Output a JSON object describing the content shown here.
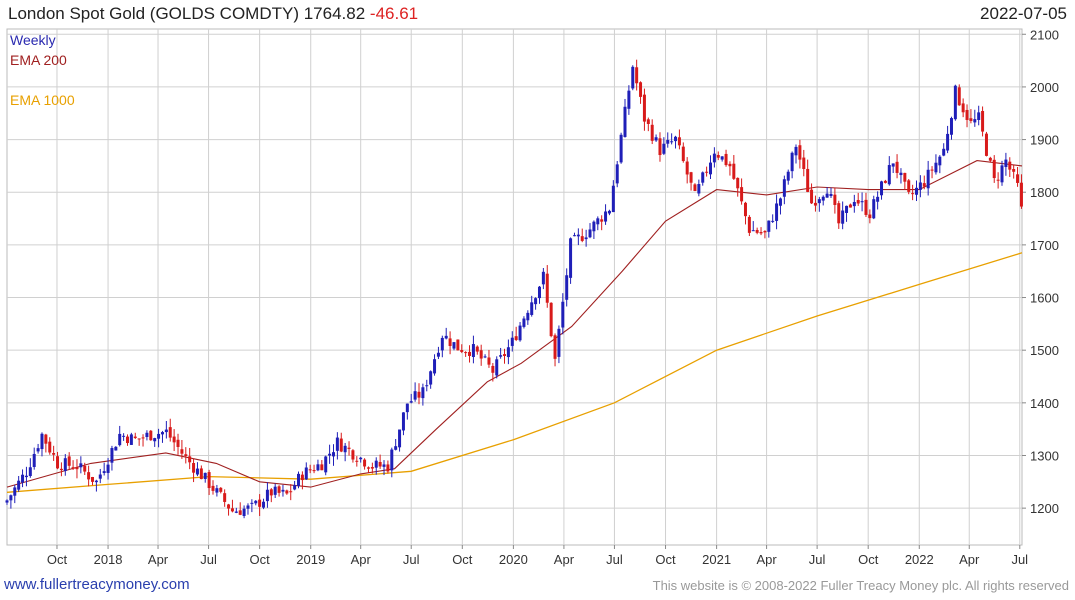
{
  "header": {
    "title": "London Spot Gold (GOLDS COMDTY) 1764.82",
    "change": "-46.61",
    "date": "2022-07-05"
  },
  "footer": {
    "site": "www.fullertreacymoney.com",
    "copyright": "This website is © 2008-2022 Fuller Treacy Money plc. All rights reserved"
  },
  "chart_data": {
    "type": "candlestick",
    "interval_label": "Weekly",
    "legend": [
      {
        "name": "EMA 200",
        "color": "#a02020"
      },
      {
        "name": "EMA 1000",
        "color": "#e8a000"
      }
    ],
    "colors": {
      "up": "#1f1fb8",
      "down": "#d81a1a",
      "grid": "#d0d0d0"
    },
    "y_axis": {
      "min": 1130,
      "max": 2110,
      "ticks": [
        1200,
        1300,
        1400,
        1500,
        1600,
        1700,
        1800,
        1900,
        2000,
        2100
      ],
      "position": "right"
    },
    "x_axis": {
      "range": [
        "2017-07-03",
        "2022-07-05"
      ],
      "ticks": [
        {
          "label": "Oct",
          "date": "2017-10-01"
        },
        {
          "label": "2018",
          "date": "2018-01-01"
        },
        {
          "label": "Apr",
          "date": "2018-04-01"
        },
        {
          "label": "Jul",
          "date": "2018-07-01"
        },
        {
          "label": "Oct",
          "date": "2018-10-01"
        },
        {
          "label": "2019",
          "date": "2019-01-01"
        },
        {
          "label": "Apr",
          "date": "2019-04-01"
        },
        {
          "label": "Jul",
          "date": "2019-07-01"
        },
        {
          "label": "Oct",
          "date": "2019-10-01"
        },
        {
          "label": "2020",
          "date": "2020-01-01"
        },
        {
          "label": "Apr",
          "date": "2020-04-01"
        },
        {
          "label": "Jul",
          "date": "2020-07-01"
        },
        {
          "label": "Oct",
          "date": "2020-10-01"
        },
        {
          "label": "2021",
          "date": "2021-01-01"
        },
        {
          "label": "Apr",
          "date": "2021-04-01"
        },
        {
          "label": "Jul",
          "date": "2021-07-01"
        },
        {
          "label": "Oct",
          "date": "2021-10-01"
        },
        {
          "label": "2022",
          "date": "2022-01-01"
        },
        {
          "label": "Apr",
          "date": "2022-04-01"
        },
        {
          "label": "Jul",
          "date": "2022-07-01"
        }
      ]
    },
    "price_path": [
      {
        "date": "2017-07-03",
        "close": 1215
      },
      {
        "date": "2017-08-07",
        "close": 1270
      },
      {
        "date": "2017-09-04",
        "close": 1340
      },
      {
        "date": "2017-10-02",
        "close": 1285
      },
      {
        "date": "2017-11-06",
        "close": 1280
      },
      {
        "date": "2017-12-11",
        "close": 1250
      },
      {
        "date": "2018-01-22",
        "close": 1340
      },
      {
        "date": "2018-02-19",
        "close": 1330
      },
      {
        "date": "2018-03-19",
        "close": 1340
      },
      {
        "date": "2018-04-16",
        "close": 1345
      },
      {
        "date": "2018-05-21",
        "close": 1295
      },
      {
        "date": "2018-06-25",
        "close": 1255
      },
      {
        "date": "2018-08-13",
        "close": 1195
      },
      {
        "date": "2018-09-17",
        "close": 1200
      },
      {
        "date": "2018-10-22",
        "close": 1230
      },
      {
        "date": "2018-11-19",
        "close": 1225
      },
      {
        "date": "2018-12-17",
        "close": 1265
      },
      {
        "date": "2019-01-21",
        "close": 1285
      },
      {
        "date": "2019-02-18",
        "close": 1325
      },
      {
        "date": "2019-03-18",
        "close": 1305
      },
      {
        "date": "2019-04-22",
        "close": 1280
      },
      {
        "date": "2019-05-20",
        "close": 1280
      },
      {
        "date": "2019-06-24",
        "close": 1400
      },
      {
        "date": "2019-07-22",
        "close": 1420
      },
      {
        "date": "2019-08-26",
        "close": 1530
      },
      {
        "date": "2019-09-23",
        "close": 1505
      },
      {
        "date": "2019-10-21",
        "close": 1500
      },
      {
        "date": "2019-11-25",
        "close": 1460
      },
      {
        "date": "2019-12-30",
        "close": 1515
      },
      {
        "date": "2020-01-27",
        "close": 1580
      },
      {
        "date": "2020-02-24",
        "close": 1640
      },
      {
        "date": "2020-03-16",
        "close": 1480
      },
      {
        "date": "2020-04-13",
        "close": 1700
      },
      {
        "date": "2020-05-18",
        "close": 1730
      },
      {
        "date": "2020-06-22",
        "close": 1770
      },
      {
        "date": "2020-07-20",
        "close": 1950
      },
      {
        "date": "2020-08-03",
        "close": 2040
      },
      {
        "date": "2020-08-24",
        "close": 1940
      },
      {
        "date": "2020-09-21",
        "close": 1880
      },
      {
        "date": "2020-10-19",
        "close": 1900
      },
      {
        "date": "2020-11-23",
        "close": 1790
      },
      {
        "date": "2020-12-28",
        "close": 1880
      },
      {
        "date": "2021-01-25",
        "close": 1850
      },
      {
        "date": "2021-03-01",
        "close": 1730
      },
      {
        "date": "2021-03-29",
        "close": 1720
      },
      {
        "date": "2021-04-26",
        "close": 1790
      },
      {
        "date": "2021-05-24",
        "close": 1890
      },
      {
        "date": "2021-06-21",
        "close": 1780
      },
      {
        "date": "2021-07-19",
        "close": 1810
      },
      {
        "date": "2021-08-09",
        "close": 1740
      },
      {
        "date": "2021-09-06",
        "close": 1790
      },
      {
        "date": "2021-10-04",
        "close": 1760
      },
      {
        "date": "2021-11-15",
        "close": 1860
      },
      {
        "date": "2021-12-13",
        "close": 1790
      },
      {
        "date": "2022-01-10",
        "close": 1820
      },
      {
        "date": "2022-02-14",
        "close": 1880
      },
      {
        "date": "2022-03-07",
        "close": 1990
      },
      {
        "date": "2022-04-04",
        "close": 1930
      },
      {
        "date": "2022-04-18",
        "close": 1940
      },
      {
        "date": "2022-05-16",
        "close": 1820
      },
      {
        "date": "2022-06-06",
        "close": 1860
      },
      {
        "date": "2022-06-27",
        "close": 1810
      },
      {
        "date": "2022-07-04",
        "close": 1765
      }
    ],
    "ema200": [
      {
        "date": "2017-07-03",
        "value": 1240
      },
      {
        "date": "2017-12-01",
        "value": 1285
      },
      {
        "date": "2018-04-15",
        "value": 1305
      },
      {
        "date": "2018-07-15",
        "value": 1285
      },
      {
        "date": "2018-10-01",
        "value": 1250
      },
      {
        "date": "2019-01-01",
        "value": 1240
      },
      {
        "date": "2019-04-01",
        "value": 1265
      },
      {
        "date": "2019-06-01",
        "value": 1275
      },
      {
        "date": "2019-08-15",
        "value": 1350
      },
      {
        "date": "2019-11-15",
        "value": 1440
      },
      {
        "date": "2020-01-15",
        "value": 1475
      },
      {
        "date": "2020-04-15",
        "value": 1545
      },
      {
        "date": "2020-07-15",
        "value": 1650
      },
      {
        "date": "2020-10-01",
        "value": 1745
      },
      {
        "date": "2021-01-01",
        "value": 1805
      },
      {
        "date": "2021-04-01",
        "value": 1795
      },
      {
        "date": "2021-07-01",
        "value": 1810
      },
      {
        "date": "2021-10-01",
        "value": 1805
      },
      {
        "date": "2022-01-01",
        "value": 1805
      },
      {
        "date": "2022-04-15",
        "value": 1860
      },
      {
        "date": "2022-07-05",
        "value": 1850
      }
    ],
    "ema1000": [
      {
        "date": "2017-07-03",
        "value": 1230
      },
      {
        "date": "2018-01-01",
        "value": 1245
      },
      {
        "date": "2018-07-01",
        "value": 1260
      },
      {
        "date": "2019-01-01",
        "value": 1255
      },
      {
        "date": "2019-07-01",
        "value": 1270
      },
      {
        "date": "2020-01-01",
        "value": 1330
      },
      {
        "date": "2020-07-01",
        "value": 1400
      },
      {
        "date": "2021-01-01",
        "value": 1500
      },
      {
        "date": "2021-07-01",
        "value": 1565
      },
      {
        "date": "2022-01-01",
        "value": 1625
      },
      {
        "date": "2022-07-05",
        "value": 1685
      }
    ]
  }
}
